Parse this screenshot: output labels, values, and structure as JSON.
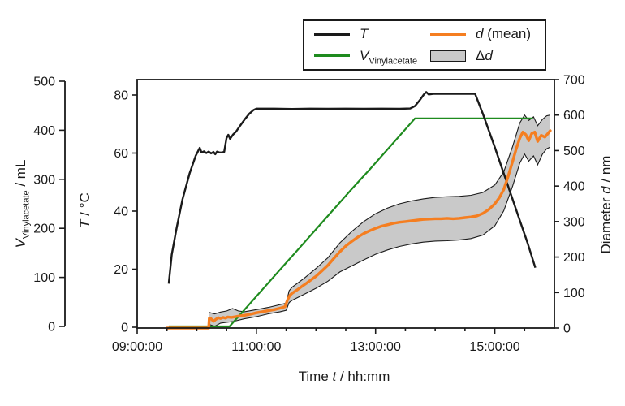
{
  "colors": {
    "temperature": "#1a1a1a",
    "vinylacetate": "#1e8b1e",
    "diameter_mean": "#f57e20",
    "band_fill": "#c9c9c9",
    "band_edge": "#1a1a1a",
    "axis": "#1a1a1a"
  },
  "legend": {
    "t_label": "T",
    "v_var": "V",
    "v_sub": "Vinylacetate",
    "d_var": "d",
    "d_rest": " (mean)",
    "band_delta": "Δ",
    "band_var": "d"
  },
  "axes": {
    "x": {
      "title_prefix": "Time ",
      "title_var": "t",
      "title_suffix": " / hh:mm",
      "tick_labels": [
        "09:00:00",
        "11:00:00",
        "13:00:00",
        "15:00:00"
      ],
      "tick_hours": [
        9,
        11,
        13,
        15
      ],
      "minor_interval_minutes": 30,
      "range_hours": [
        9,
        16
      ]
    },
    "t": {
      "title_var": "T",
      "title_suffix": " / °C",
      "ticks": [
        0,
        20,
        40,
        60,
        80
      ],
      "range": [
        0,
        80
      ]
    },
    "v": {
      "title_var": "V",
      "title_sub": "Vinylacetate",
      "title_suffix": " / mL",
      "ticks": [
        0,
        100,
        200,
        300,
        400,
        500
      ],
      "range": [
        0,
        500
      ]
    },
    "d": {
      "title_prefix": "Diameter ",
      "title_var": "d",
      "title_suffix": " / nm",
      "ticks": [
        0,
        100,
        200,
        300,
        400,
        500,
        600,
        700
      ],
      "range": [
        0,
        700
      ]
    }
  },
  "chart_data": {
    "type": "line",
    "title": "",
    "xlabel": "Time t / hh:mm",
    "x_unit": "decimal hours",
    "x_range": [
      9,
      16
    ],
    "legend_position": "top-right",
    "grid": false,
    "series": [
      {
        "name": "T",
        "axis": "T / °C",
        "color_key": "temperature",
        "points": [
          [
            9.53,
            15
          ],
          [
            9.58,
            25
          ],
          [
            9.66,
            34
          ],
          [
            9.76,
            44
          ],
          [
            9.88,
            53
          ],
          [
            9.98,
            59
          ],
          [
            10.05,
            61.8
          ],
          [
            10.08,
            60.2
          ],
          [
            10.12,
            60.6
          ],
          [
            10.16,
            60.0
          ],
          [
            10.2,
            60.5
          ],
          [
            10.24,
            59.9
          ],
          [
            10.28,
            60.4
          ],
          [
            10.31,
            59.6
          ],
          [
            10.34,
            60.5
          ],
          [
            10.38,
            60.2
          ],
          [
            10.42,
            60.2
          ],
          [
            10.46,
            60.4
          ],
          [
            10.5,
            65.2
          ],
          [
            10.53,
            66.3
          ],
          [
            10.56,
            64.9
          ],
          [
            10.61,
            66.4
          ],
          [
            10.66,
            67.4
          ],
          [
            10.72,
            69.2
          ],
          [
            10.8,
            71.5
          ],
          [
            10.88,
            73.5
          ],
          [
            10.95,
            74.8
          ],
          [
            11.0,
            75.3
          ],
          [
            11.3,
            75.3
          ],
          [
            11.6,
            75.2
          ],
          [
            11.9,
            75.3
          ],
          [
            12.2,
            75.25
          ],
          [
            12.5,
            75.3
          ],
          [
            12.8,
            75.25
          ],
          [
            13.1,
            75.3
          ],
          [
            13.4,
            75.25
          ],
          [
            13.58,
            75.35
          ],
          [
            13.66,
            76.2
          ],
          [
            13.74,
            78.2
          ],
          [
            13.81,
            80.2
          ],
          [
            13.85,
            81.0
          ],
          [
            13.89,
            80.2
          ],
          [
            13.97,
            80.4
          ],
          [
            14.15,
            80.4
          ],
          [
            14.35,
            80.45
          ],
          [
            14.55,
            80.4
          ],
          [
            14.67,
            80.45
          ],
          [
            14.8,
            73.5
          ],
          [
            15.0,
            62
          ],
          [
            15.2,
            50
          ],
          [
            15.4,
            38
          ],
          [
            15.55,
            29
          ],
          [
            15.68,
            20.5
          ]
        ]
      },
      {
        "name": "V_Vinylacetate",
        "axis": "V / mL",
        "color_key": "vinylacetate",
        "points": [
          [
            9.53,
            0
          ],
          [
            10.55,
            0
          ],
          [
            10.8,
            34
          ],
          [
            11.1,
            75
          ],
          [
            11.4,
            116
          ],
          [
            11.7,
            157
          ],
          [
            12.0,
            198
          ],
          [
            12.3,
            239
          ],
          [
            12.6,
            280
          ],
          [
            12.9,
            320
          ],
          [
            13.2,
            361
          ],
          [
            13.5,
            402
          ],
          [
            13.66,
            424
          ],
          [
            14.0,
            424
          ],
          [
            14.4,
            424
          ],
          [
            14.8,
            424
          ],
          [
            15.2,
            424
          ],
          [
            15.64,
            424
          ]
        ]
      },
      {
        "name": "d (mean)",
        "axis": "d / nm",
        "color_key": "diameter_mean",
        "points": [
          [
            9.5,
            0
          ],
          [
            10.2,
            0
          ],
          [
            10.21,
            27
          ],
          [
            10.24,
            26
          ],
          [
            10.28,
            19
          ],
          [
            10.31,
            23
          ],
          [
            10.36,
            29
          ],
          [
            10.4,
            27
          ],
          [
            10.44,
            30
          ],
          [
            10.48,
            28
          ],
          [
            10.52,
            31
          ],
          [
            10.58,
            30
          ],
          [
            10.65,
            32
          ],
          [
            10.72,
            34
          ],
          [
            10.8,
            36
          ],
          [
            10.9,
            39
          ],
          [
            11.0,
            43
          ],
          [
            11.1,
            46
          ],
          [
            11.2,
            49
          ],
          [
            11.3,
            52
          ],
          [
            11.4,
            56
          ],
          [
            11.48,
            60
          ],
          [
            11.52,
            78
          ],
          [
            11.56,
            92
          ],
          [
            11.6,
            98
          ],
          [
            11.68,
            107
          ],
          [
            11.76,
            117
          ],
          [
            11.84,
            126
          ],
          [
            11.92,
            136
          ],
          [
            12.0,
            146
          ],
          [
            12.1,
            161
          ],
          [
            12.2,
            177
          ],
          [
            12.3,
            196
          ],
          [
            12.4,
            215
          ],
          [
            12.5,
            231
          ],
          [
            12.6,
            244
          ],
          [
            12.7,
            256
          ],
          [
            12.8,
            266
          ],
          [
            12.9,
            274
          ],
          [
            13.0,
            281
          ],
          [
            13.1,
            287
          ],
          [
            13.2,
            291
          ],
          [
            13.3,
            295
          ],
          [
            13.4,
            298
          ],
          [
            13.5,
            300
          ],
          [
            13.6,
            302
          ],
          [
            13.7,
            304
          ],
          [
            13.8,
            306
          ],
          [
            13.9,
            307
          ],
          [
            14.0,
            308
          ],
          [
            14.1,
            308
          ],
          [
            14.2,
            309
          ],
          [
            14.3,
            308
          ],
          [
            14.4,
            309
          ],
          [
            14.5,
            311
          ],
          [
            14.6,
            313
          ],
          [
            14.7,
            316
          ],
          [
            14.8,
            323
          ],
          [
            14.9,
            334
          ],
          [
            15.0,
            350
          ],
          [
            15.08,
            368
          ],
          [
            15.15,
            390
          ],
          [
            15.22,
            425
          ],
          [
            15.3,
            470
          ],
          [
            15.36,
            505
          ],
          [
            15.42,
            535
          ],
          [
            15.47,
            552
          ],
          [
            15.52,
            545
          ],
          [
            15.57,
            528
          ],
          [
            15.62,
            548
          ],
          [
            15.67,
            552
          ],
          [
            15.72,
            526
          ],
          [
            15.78,
            543
          ],
          [
            15.84,
            538
          ],
          [
            15.9,
            550
          ],
          [
            15.93,
            556
          ]
        ]
      },
      {
        "name": "Δd",
        "axis": "d / nm",
        "type": "band",
        "color_key": "band_fill",
        "x": [
          10.21,
          10.3,
          10.4,
          10.5,
          10.6,
          10.7,
          10.8,
          11.0,
          11.2,
          11.4,
          11.5,
          11.55,
          11.6,
          11.8,
          12.0,
          12.2,
          12.4,
          12.6,
          12.8,
          13.0,
          13.2,
          13.4,
          13.6,
          13.8,
          14.0,
          14.2,
          14.4,
          14.6,
          14.8,
          15.0,
          15.15,
          15.3,
          15.42,
          15.5,
          15.57,
          15.65,
          15.72,
          15.8,
          15.87,
          15.93
        ],
        "lower": [
          10,
          5,
          14,
          16,
          18,
          22,
          26,
          32,
          40,
          46,
          50,
          72,
          78,
          95,
          112,
          132,
          158,
          175,
          192,
          208,
          220,
          230,
          237,
          242,
          245,
          246,
          248,
          252,
          262,
          288,
          330,
          400,
          465,
          490,
          470,
          485,
          460,
          490,
          505,
          510
        ],
        "upper": [
          44,
          40,
          45,
          48,
          55,
          48,
          46,
          52,
          58,
          66,
          70,
          105,
          115,
          140,
          168,
          198,
          240,
          272,
          300,
          322,
          338,
          350,
          358,
          364,
          368,
          370,
          371,
          374,
          382,
          403,
          440,
          512,
          578,
          600,
          585,
          595,
          570,
          588,
          598,
          600
        ]
      }
    ]
  }
}
